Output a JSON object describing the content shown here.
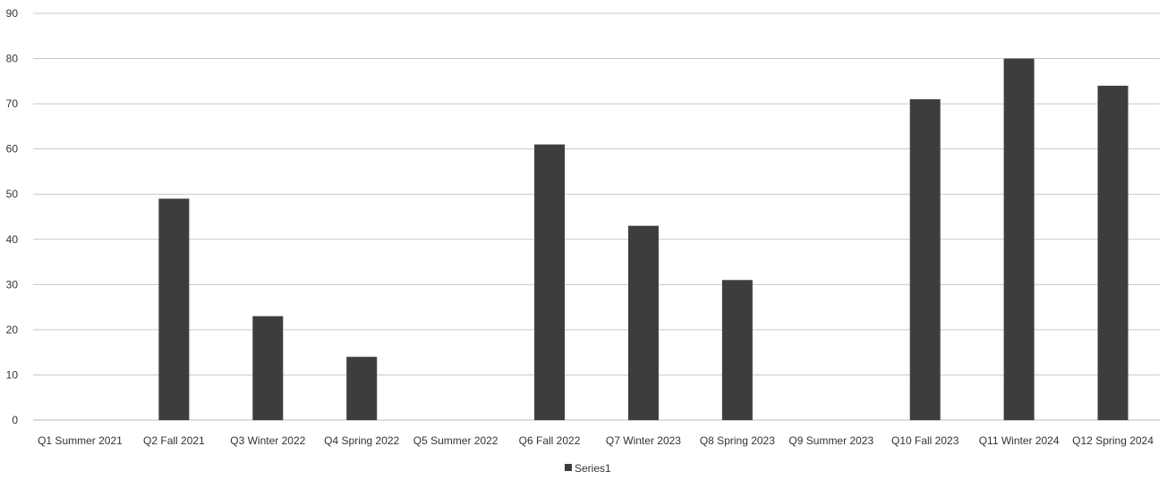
{
  "chart_data": {
    "type": "bar",
    "categories": [
      "Q1 Summer 2021",
      "Q2 Fall 2021",
      "Q3 Winter 2022",
      "Q4 Spring 2022",
      "Q5 Summer 2022",
      "Q6 Fall 2022",
      "Q7 Winter 2023",
      "Q8 Spring 2023",
      "Q9 Summer 2023",
      "Q10 Fall 2023",
      "Q11 Winter 2024",
      "Q12 Spring 2024"
    ],
    "series": [
      {
        "name": "Series1",
        "values": [
          0,
          49,
          23,
          14,
          0,
          61,
          43,
          31,
          0,
          71,
          80,
          74
        ]
      }
    ],
    "yticks": [
      "0",
      "10",
      "20",
      "30",
      "40",
      "50",
      "60",
      "70",
      "80",
      "90"
    ],
    "ylim": [
      0,
      90
    ],
    "grid": true,
    "legend_position": "bottom",
    "colors": {
      "bar": "#3d3d3d",
      "grid": "#c8c8c8",
      "text": "#333333"
    }
  }
}
